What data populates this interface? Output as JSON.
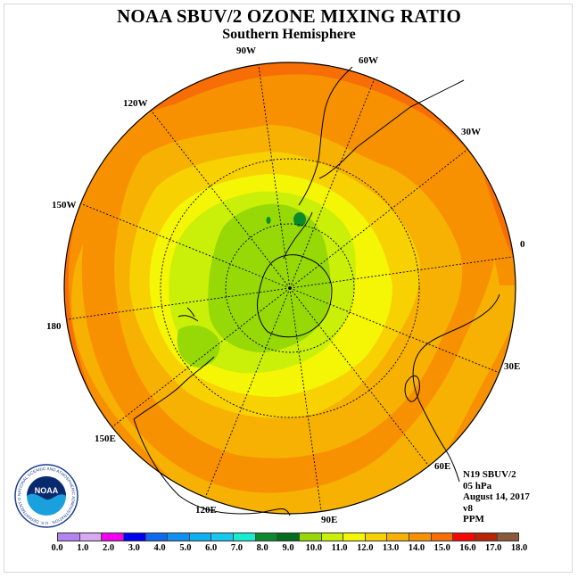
{
  "title": "NOAA SBUV/2 OZONE MIXING RATIO",
  "subtitle": "Southern Hemisphere",
  "longitude_labels": {
    "lon_90w": "90W",
    "lon_60w": "60W",
    "lon_30w": "30W",
    "lon_0": "0",
    "lon_30e": "30E",
    "lon_60e": "60E",
    "lon_90e": "90E",
    "lon_120e": "120E",
    "lon_150e": "150E",
    "lon_180": "180",
    "lon_150w": "150W",
    "lon_120w": "120W"
  },
  "info": {
    "instrument": "N19 SBUV/2",
    "level": "05 hPa",
    "date": "August 14, 2017",
    "version": "v8",
    "units": "PPM"
  },
  "logo": {
    "text": "NOAA",
    "ring_text": "NATIONAL OCEANIC AND ATMOSPHERIC ADMINISTRATION · U.S. DEPARTMENT OF COMMERCE"
  },
  "color_scale": {
    "colors": [
      "#b383ef",
      "#d6a9f1",
      "#f100ef",
      "#0000f0",
      "#0e69ee",
      "#0f8fee",
      "#0fb0ef",
      "#16c8ee",
      "#15ecd1",
      "#0a8a2c",
      "#026d1f",
      "#97d807",
      "#caef08",
      "#f4f606",
      "#f8d102",
      "#f7b102",
      "#f89102",
      "#f76e06",
      "#f60804",
      "#b72506",
      "#8b5a3a"
    ],
    "tick_labels": [
      "0.0",
      "1.0",
      "2.0",
      "3.0",
      "4.0",
      "5.0",
      "6.0",
      "7.0",
      "8.0",
      "9.0",
      "10.0",
      "11.0",
      "12.0",
      "13.0",
      "14.0",
      "15.0",
      "16.0",
      "17.0",
      "18.0"
    ]
  }
}
